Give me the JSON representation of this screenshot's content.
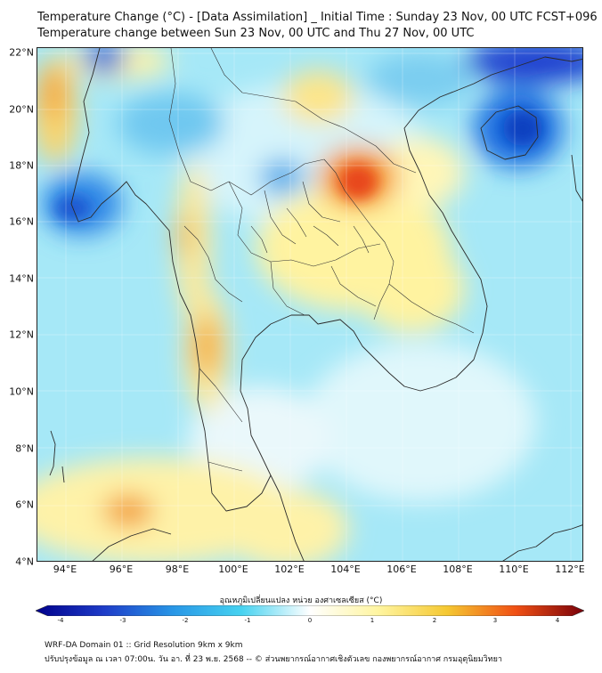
{
  "title": {
    "line1": "Temperature Change (°C) - [Data Assimilation] _ Initial Time : Sunday 23 Nov, 00 UTC FCST+096",
    "line2": "Temperature change between Sun 23 Nov, 00 UTC and Thu 27 Nov, 00 UTC"
  },
  "lat_labels": [
    "22°N",
    "20°N",
    "18°N",
    "16°N",
    "14°N",
    "12°N",
    "10°N",
    "8°N",
    "6°N",
    "4°N"
  ],
  "lon_labels": [
    "94°E",
    "96°E",
    "98°E",
    "100°E",
    "102°E",
    "104°E",
    "106°E",
    "108°E",
    "110°E",
    "112°E"
  ],
  "colorbar": {
    "title": "อุณหภูมิเปลี่ยนแปลง หน่วย องศาเซลเซียส (°C)",
    "ticks": [
      "-4",
      "-3",
      "-2",
      "-1",
      "0",
      "1",
      "2",
      "3",
      "4"
    ],
    "range": [
      -4,
      4
    ],
    "colors": {
      "minus4": "#00008b",
      "minus3": "#1e3cc8",
      "minus2": "#2896e6",
      "minus1": "#46d2f0",
      "zero": "#ffffff",
      "plus1": "#fff5a0",
      "plus2": "#f5c832",
      "plus3": "#f05014",
      "plus4": "#78000a"
    }
  },
  "footer": {
    "line1": "WRF-DA Domain 01 :: Grid Resolution 9km x 9km",
    "line2": "ปรับปรุงข้อมูล ณ เวลา 07:00น. วัน อา. ที่ 23 พ.ย. 2568 -- © ส่วนพยากรณ์อากาศเชิงตัวเลข กองพยากรณ์อากาศ กรมอุตุนิยมวิทยา"
  }
}
